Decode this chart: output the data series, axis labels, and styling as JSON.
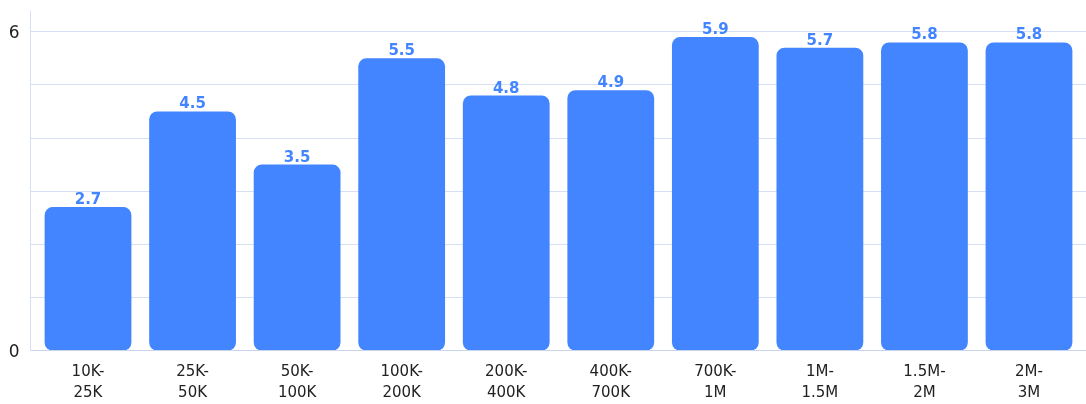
{
  "chart_data": {
    "type": "bar",
    "categories": [
      "10K-\n25K",
      "25K-\n50K",
      "50K-\n100K",
      "100K-\n200K",
      "200K-\n400K",
      "400K-\n700K",
      "700K-\n1M",
      "1M-\n1.5M",
      "1.5M-\n2M",
      "2M-\n3M"
    ],
    "values": [
      2.7,
      4.5,
      3.5,
      5.5,
      4.8,
      4.9,
      5.9,
      5.7,
      5.8,
      5.8
    ],
    "color": "#4285ff",
    "data_labels": true,
    "ylim": [
      0,
      6.4
    ],
    "yticks": [
      0,
      {
        "value": 1,
        "label": null
      },
      {
        "value": 2,
        "label": null
      },
      {
        "value": 3,
        "label": null
      },
      {
        "value": 4,
        "label": null
      },
      {
        "value": 5,
        "label": null
      },
      6
    ],
    "grid": "y"
  }
}
